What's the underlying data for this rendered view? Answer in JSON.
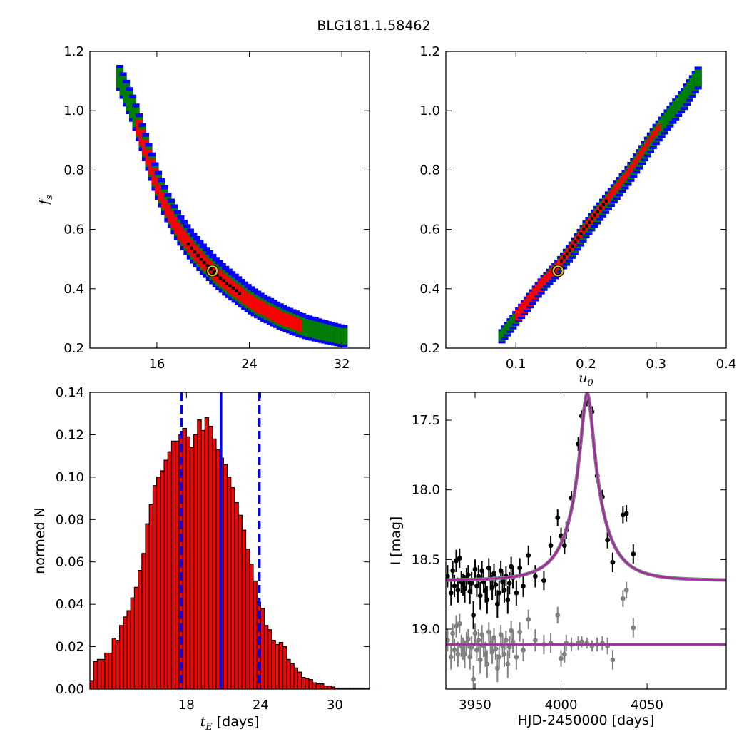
{
  "suptitle": "BLG181.1.58462",
  "chart_data": [
    {
      "type": "heatmap",
      "panel": "tE-vs-fs",
      "xlabel": "",
      "ylabel": "f_s",
      "xlim": [
        10.2,
        34.4
      ],
      "ylim": [
        0.2,
        1.2
      ],
      "xticks": [
        16,
        24,
        32
      ],
      "yticks": [
        0.2,
        0.4,
        0.6,
        0.8,
        1.0,
        1.2
      ],
      "xtick_labels": [
        "16",
        "24",
        "32"
      ],
      "ytick_labels": [
        "0.2",
        "0.4",
        "0.6",
        "0.8",
        "1.0",
        "1.2"
      ],
      "colors": {
        "outer": "#0000ff",
        "middle": "#007f00",
        "inner": "#ff0000",
        "core": "#000000"
      },
      "ridge": [
        [
          12.8,
          1.11
        ],
        [
          14.0,
          1.0
        ],
        [
          15.0,
          0.88
        ],
        [
          16.0,
          0.76
        ],
        [
          17.0,
          0.67
        ],
        [
          18.0,
          0.6
        ],
        [
          19.0,
          0.545
        ],
        [
          20.0,
          0.5
        ],
        [
          21.0,
          0.46
        ],
        [
          22.0,
          0.425
        ],
        [
          23.0,
          0.395
        ],
        [
          24.0,
          0.365
        ],
        [
          25.0,
          0.34
        ],
        [
          26.0,
          0.32
        ],
        [
          27.0,
          0.3
        ],
        [
          28.0,
          0.285
        ],
        [
          29.0,
          0.27
        ],
        [
          30.0,
          0.26
        ],
        [
          31.0,
          0.25
        ],
        [
          32.2,
          0.24
        ]
      ],
      "best_fit": [
        20.8,
        0.46
      ]
    },
    {
      "type": "heatmap",
      "panel": "u0-vs-fs",
      "xlabel": "u_0",
      "ylabel": "",
      "xlim": [
        0.0,
        0.4
      ],
      "ylim": [
        0.2,
        1.2
      ],
      "xticks": [
        0.1,
        0.2,
        0.3,
        0.4
      ],
      "yticks": [
        0.2,
        0.4,
        0.6,
        0.8,
        1.0,
        1.2
      ],
      "xtick_labels": [
        "0.1",
        "0.2",
        "0.3",
        "0.4"
      ],
      "ytick_labels": [
        "0.2",
        "0.4",
        "0.6",
        "0.8",
        "1.0",
        "1.2"
      ],
      "colors": {
        "outer": "#0000ff",
        "middle": "#007f00",
        "inner": "#ff0000",
        "core": "#000000"
      },
      "ridge": [
        [
          0.08,
          0.24
        ],
        [
          0.1,
          0.3
        ],
        [
          0.12,
          0.36
        ],
        [
          0.14,
          0.42
        ],
        [
          0.16,
          0.47
        ],
        [
          0.18,
          0.53
        ],
        [
          0.2,
          0.6
        ],
        [
          0.22,
          0.66
        ],
        [
          0.24,
          0.72
        ],
        [
          0.26,
          0.78
        ],
        [
          0.28,
          0.85
        ],
        [
          0.3,
          0.92
        ],
        [
          0.32,
          0.98
        ],
        [
          0.34,
          1.04
        ],
        [
          0.36,
          1.11
        ]
      ],
      "best_fit": [
        0.16,
        0.46
      ]
    },
    {
      "type": "bar",
      "panel": "tE-histogram",
      "xlabel": "t_E  [days]",
      "ylabel": "normed N",
      "xlim": [
        10.2,
        32.8
      ],
      "ylim": [
        0.0,
        0.14
      ],
      "xticks": [
        18,
        24,
        30
      ],
      "yticks": [
        0.0,
        0.02,
        0.04,
        0.06,
        0.08,
        0.1,
        0.12,
        0.14
      ],
      "xtick_labels": [
        "18",
        "24",
        "30"
      ],
      "ytick_labels": [
        "0.00",
        "0.02",
        "0.04",
        "0.06",
        "0.08",
        "0.10",
        "0.12",
        "0.14"
      ],
      "bin_start": 10.2,
      "bin_width": 0.3,
      "values": [
        0.004,
        0.013,
        0.014,
        0.014,
        0.017,
        0.017,
        0.024,
        0.023,
        0.03,
        0.034,
        0.037,
        0.043,
        0.048,
        0.056,
        0.064,
        0.078,
        0.087,
        0.096,
        0.1,
        0.103,
        0.108,
        0.112,
        0.117,
        0.117,
        0.12,
        0.123,
        0.119,
        0.114,
        0.12,
        0.127,
        0.122,
        0.128,
        0.124,
        0.118,
        0.113,
        0.109,
        0.106,
        0.1,
        0.095,
        0.088,
        0.082,
        0.075,
        0.066,
        0.059,
        0.051,
        0.041,
        0.038,
        0.03,
        0.028,
        0.023,
        0.021,
        0.022,
        0.02,
        0.014,
        0.012,
        0.01,
        0.008,
        0.0055,
        0.005,
        0.0045,
        0.003,
        0.0025,
        0.0025,
        0.0015,
        0.0015,
        0.001,
        0.0005,
        0.0005,
        0.0005,
        0.0005,
        0.0005,
        0.0005,
        0.0005,
        0.0005,
        0.0005
      ],
      "bar_color": "#ff0000",
      "median": 20.8,
      "lower": 17.6,
      "upper": 23.9,
      "line_color": "#0000ff"
    },
    {
      "type": "scatter",
      "panel": "light-curve",
      "xlabel": "HJD-2450000 [days]",
      "ylabel": "I [mag]",
      "xlim": [
        3933,
        4096
      ],
      "ylim": [
        19.43,
        17.3
      ],
      "xticks": [
        3950,
        4000,
        4050
      ],
      "yticks": [
        17.5,
        18.0,
        18.5,
        19.0
      ],
      "xtick_labels": [
        "3950",
        "4000",
        "4050"
      ],
      "ytick_labels": [
        "17.5",
        "18.0",
        "18.5",
        "19.0"
      ],
      "model": {
        "t0": 4015.2,
        "tE": 20.8,
        "u0": 0.16,
        "fs": 0.46,
        "baseline": 18.65
      },
      "model_color": "#aa22aa",
      "residual_baseline": 19.11,
      "series": [
        {
          "color": "#000000",
          "x": [
            3934,
            3936,
            3937,
            3938,
            3939,
            3940,
            3941,
            3942,
            3943,
            3944,
            3945,
            3946,
            3947,
            3948,
            3949,
            3950,
            3951,
            3952,
            3953,
            3954,
            3955,
            3956,
            3957,
            3958,
            3959,
            3960,
            3961,
            3962,
            3963,
            3964,
            3965,
            3966,
            3967,
            3968,
            3969,
            3970,
            3971,
            3972,
            3974,
            3976,
            3978,
            3981,
            3985,
            3990,
            3994,
            3998,
            4000,
            4002,
            4003,
            4006,
            4010,
            4012,
            4015,
            4018,
            4021,
            4024,
            4027,
            4030,
            4036,
            4038,
            4042
          ],
          "y": [
            18.62,
            18.74,
            18.58,
            18.69,
            18.51,
            18.72,
            18.49,
            18.66,
            18.68,
            18.71,
            18.64,
            18.61,
            18.73,
            18.67,
            18.9,
            18.57,
            18.69,
            18.62,
            18.76,
            18.58,
            18.66,
            18.72,
            18.79,
            18.56,
            18.64,
            18.7,
            18.6,
            18.68,
            18.82,
            18.74,
            18.58,
            18.66,
            18.72,
            18.62,
            18.79,
            18.67,
            18.55,
            18.63,
            18.74,
            18.56,
            18.69,
            18.47,
            18.62,
            18.65,
            18.4,
            18.2,
            18.33,
            18.4,
            18.29,
            18.06,
            17.67,
            17.47,
            17.36,
            17.44,
            17.9,
            18.05,
            18.36,
            18.52,
            18.18,
            18.17,
            18.46
          ],
          "err": [
            0.08,
            0.09,
            0.07,
            0.08,
            0.08,
            0.09,
            0.07,
            0.08,
            0.08,
            0.1,
            0.08,
            0.07,
            0.09,
            0.08,
            0.1,
            0.07,
            0.08,
            0.08,
            0.1,
            0.07,
            0.08,
            0.09,
            0.1,
            0.07,
            0.08,
            0.09,
            0.07,
            0.08,
            0.1,
            0.09,
            0.07,
            0.08,
            0.09,
            0.07,
            0.1,
            0.08,
            0.07,
            0.08,
            0.09,
            0.07,
            0.08,
            0.07,
            0.08,
            0.07,
            0.07,
            0.06,
            0.06,
            0.06,
            0.06,
            0.05,
            0.05,
            0.04,
            0.04,
            0.04,
            0.05,
            0.05,
            0.06,
            0.07,
            0.06,
            0.06,
            0.07
          ]
        },
        {
          "color": "#808080",
          "x": [
            3934,
            3936,
            3937,
            3938,
            3939,
            3940,
            3941,
            3942,
            3943,
            3944,
            3945,
            3946,
            3947,
            3948,
            3949,
            3950,
            3951,
            3952,
            3953,
            3954,
            3955,
            3956,
            3957,
            3958,
            3959,
            3960,
            3961,
            3962,
            3963,
            3964,
            3965,
            3966,
            3967,
            3968,
            3969,
            3970,
            3971,
            3972,
            3974,
            3976,
            3978,
            3981,
            3985,
            3990,
            3994,
            3998,
            4000,
            4002,
            4003,
            4006,
            4010,
            4012,
            4015,
            4018,
            4021,
            4024,
            4027,
            4030,
            4036,
            4038,
            4042
          ],
          "y": [
            19.08,
            19.2,
            19.03,
            19.15,
            18.98,
            19.18,
            18.96,
            19.12,
            19.14,
            19.18,
            19.1,
            19.07,
            19.2,
            19.13,
            19.36,
            19.03,
            19.15,
            19.08,
            19.22,
            19.04,
            19.12,
            19.18,
            19.25,
            19.02,
            19.1,
            19.16,
            19.06,
            19.14,
            19.28,
            19.2,
            19.04,
            19.12,
            19.18,
            19.08,
            19.25,
            19.13,
            19.01,
            19.09,
            19.2,
            19.02,
            19.15,
            18.93,
            19.08,
            19.11,
            19.1,
            18.9,
            19.21,
            19.18,
            19.1,
            19.11,
            19.1,
            19.09,
            19.1,
            19.12,
            19.11,
            19.1,
            19.12,
            19.22,
            18.78,
            18.72,
            18.99
          ],
          "err": [
            0.08,
            0.09,
            0.07,
            0.08,
            0.08,
            0.09,
            0.07,
            0.08,
            0.08,
            0.1,
            0.08,
            0.07,
            0.09,
            0.08,
            0.1,
            0.07,
            0.08,
            0.08,
            0.1,
            0.07,
            0.08,
            0.09,
            0.1,
            0.07,
            0.08,
            0.09,
            0.07,
            0.08,
            0.1,
            0.09,
            0.07,
            0.08,
            0.09,
            0.07,
            0.1,
            0.08,
            0.07,
            0.08,
            0.09,
            0.07,
            0.08,
            0.07,
            0.08,
            0.07,
            0.07,
            0.06,
            0.06,
            0.06,
            0.06,
            0.05,
            0.05,
            0.04,
            0.04,
            0.04,
            0.05,
            0.05,
            0.06,
            0.07,
            0.06,
            0.06,
            0.07
          ]
        }
      ]
    }
  ]
}
